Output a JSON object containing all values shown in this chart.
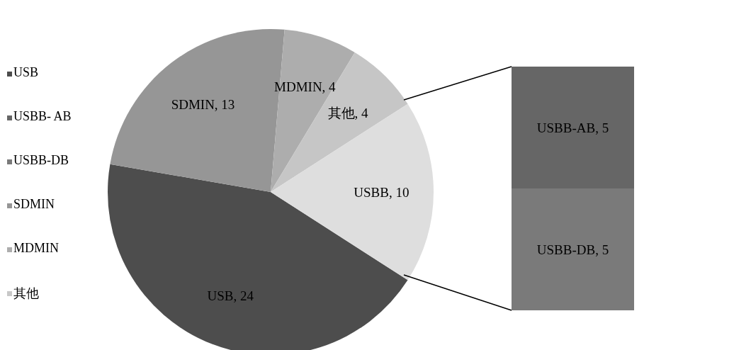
{
  "chart_data": [
    {
      "type": "other",
      "legend": "left",
      "series": [
        {
          "name": "USB",
          "color": "#4d4d4d"
        },
        {
          "name": "USBB- AB",
          "color": "#666666"
        },
        {
          "name": "USBB-DB",
          "color": "#7a7a7a"
        },
        {
          "name": "SDMIN",
          "color": "#969696"
        },
        {
          "name": "MDMIN",
          "color": "#adadad"
        },
        {
          "name": "其他",
          "color": "#c8c8c8"
        }
      ]
    },
    {
      "type": "pie",
      "categories": [
        "USB",
        "SDMIN",
        "MDMIN",
        "其他",
        "USBB"
      ],
      "values": [
        24,
        13,
        4,
        4,
        10
      ],
      "colors": [
        "#4d4d4d",
        "#969696",
        "#adadad",
        "#c6c6c6",
        "#dedede"
      ],
      "value_labels": [
        ", 24",
        ", 13",
        ", 4",
        ", 4",
        ", 10"
      ]
    },
    {
      "type": "bar",
      "stacked": true,
      "categories": [
        null
      ],
      "tick_labels": false,
      "series": [
        {
          "name": "USBB-DB",
          "color": "#7a7a7a",
          "values": [
            5
          ],
          "value_labels": [
            ", 5"
          ]
        },
        {
          "name": "USBB-AB",
          "color": "#666666",
          "values": [
            5
          ],
          "value_labels": [
            ", 5"
          ]
        }
      ]
    }
  ]
}
